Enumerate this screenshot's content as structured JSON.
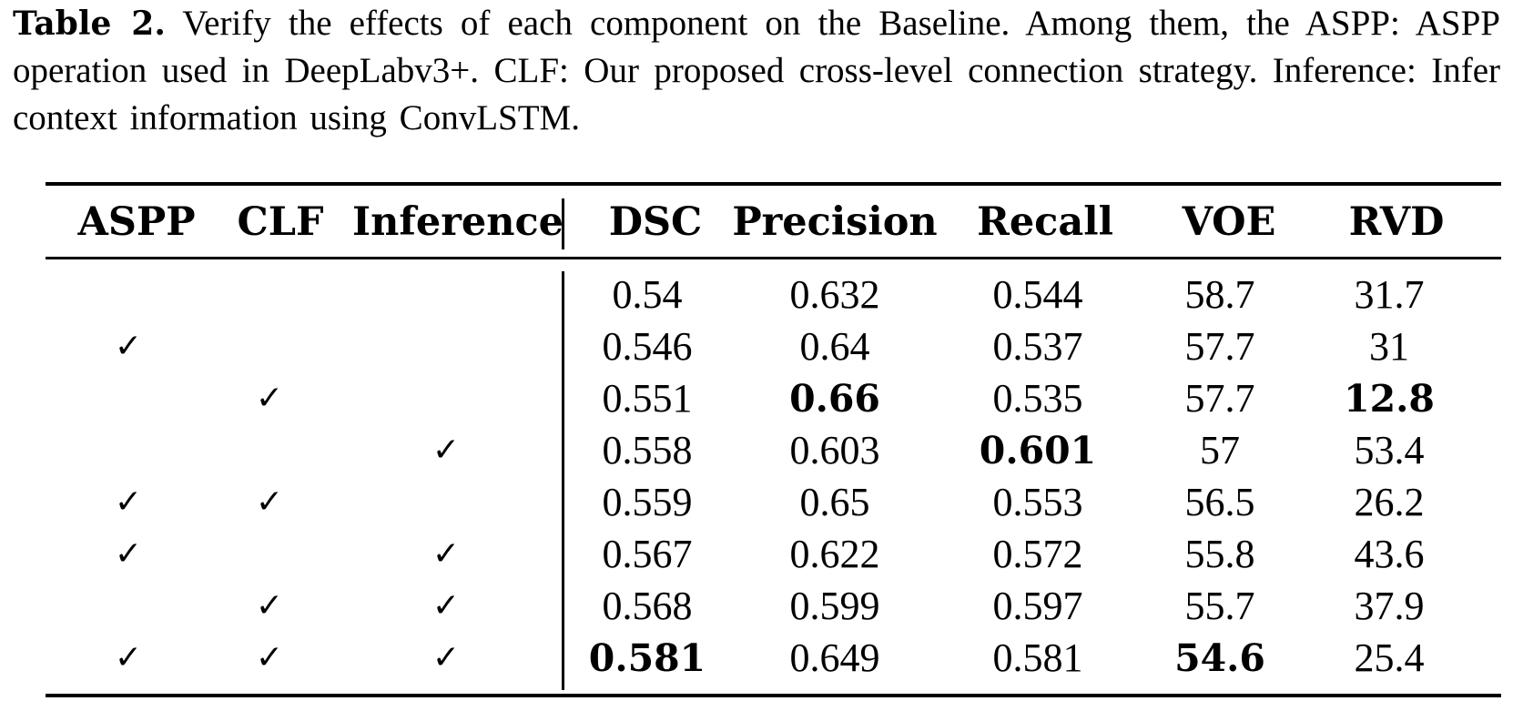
{
  "caption": {
    "label": "Table 2.",
    "text": "Verify the effects of each component on the Baseline. Among them, the ASPP: ASPP operation used in DeepLabv3+. CLF: Our proposed cross-level connection strategy. Inference: Infer context information using ConvLSTM."
  },
  "table": {
    "headers": [
      "ASPP",
      "CLF",
      "Inference",
      "DSC",
      "Precision",
      "Recall",
      "VOE",
      "RVD"
    ],
    "check_symbol": "✓",
    "rows": [
      {
        "aspp": false,
        "clf": false,
        "inference": false,
        "values": [
          "0.54",
          "0.632",
          "0.544",
          "58.7",
          "31.7"
        ],
        "bold": [
          false,
          false,
          false,
          false,
          false
        ]
      },
      {
        "aspp": true,
        "clf": false,
        "inference": false,
        "values": [
          "0.546",
          "0.64",
          "0.537",
          "57.7",
          "31"
        ],
        "bold": [
          false,
          false,
          false,
          false,
          false
        ]
      },
      {
        "aspp": false,
        "clf": true,
        "inference": false,
        "values": [
          "0.551",
          "0.66",
          "0.535",
          "57.7",
          "12.8"
        ],
        "bold": [
          false,
          true,
          false,
          false,
          true
        ]
      },
      {
        "aspp": false,
        "clf": false,
        "inference": true,
        "values": [
          "0.558",
          "0.603",
          "0.601",
          "57",
          "53.4"
        ],
        "bold": [
          false,
          false,
          true,
          false,
          false
        ]
      },
      {
        "aspp": true,
        "clf": true,
        "inference": false,
        "values": [
          "0.559",
          "0.65",
          "0.553",
          "56.5",
          "26.2"
        ],
        "bold": [
          false,
          false,
          false,
          false,
          false
        ]
      },
      {
        "aspp": true,
        "clf": false,
        "inference": true,
        "values": [
          "0.567",
          "0.622",
          "0.572",
          "55.8",
          "43.6"
        ],
        "bold": [
          false,
          false,
          false,
          false,
          false
        ]
      },
      {
        "aspp": false,
        "clf": true,
        "inference": true,
        "values": [
          "0.568",
          "0.599",
          "0.597",
          "55.7",
          "37.9"
        ],
        "bold": [
          false,
          false,
          false,
          false,
          false
        ]
      },
      {
        "aspp": true,
        "clf": true,
        "inference": true,
        "values": [
          "0.581",
          "0.649",
          "0.581",
          "54.6",
          "25.4"
        ],
        "bold": [
          true,
          false,
          false,
          true,
          false
        ]
      }
    ]
  }
}
